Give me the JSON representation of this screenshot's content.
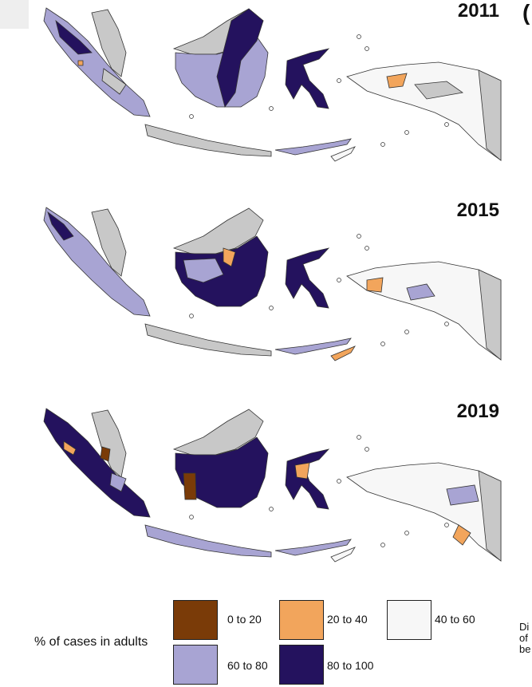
{
  "panels": [
    {
      "year": "2011"
    },
    {
      "year": "2015"
    },
    {
      "year": "2019"
    }
  ],
  "panel_letter": "(",
  "legend": {
    "title": "% of cases in adults",
    "items": [
      {
        "label": "0 to 20",
        "color": "#7a3b08"
      },
      {
        "label": "20 to 40",
        "color": "#f2a55c"
      },
      {
        "label": "40 to 60",
        "color": "#f7f7f7"
      },
      {
        "label": "60 to 80",
        "color": "#a8a4d3"
      },
      {
        "label": "80 to 100",
        "color": "#24125e"
      }
    ]
  },
  "no_data_color": "#c8c8c8",
  "side_text": [
    "Di",
    "of",
    "be"
  ]
}
